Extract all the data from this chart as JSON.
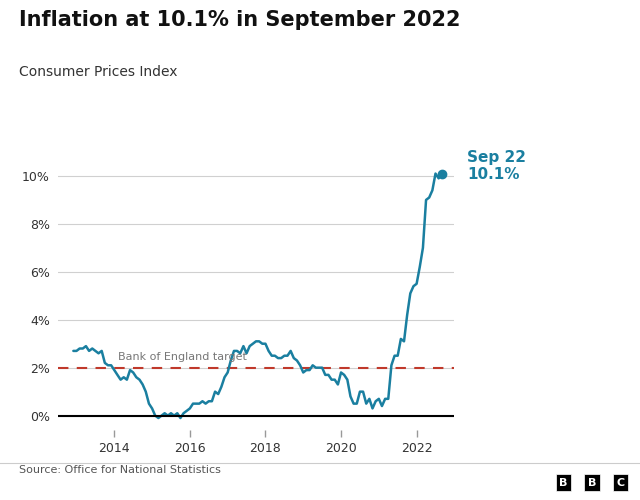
{
  "title": "Inflation at 10.1% in September 2022",
  "subtitle": "Consumer Prices Index",
  "source": "Source: Office for National Statistics",
  "line_color": "#1a7fa0",
  "target_line_color": "#c0392b",
  "target_value": 2.0,
  "target_label": "Bank of England target",
  "annotation_label": "Sep 22\n10.1%",
  "annotation_color": "#1a7fa0",
  "highlight_x": 2022.667,
  "highlight_y": 10.1,
  "background_color": "#ffffff",
  "xlim": [
    2012.5,
    2023.0
  ],
  "ylim": [
    -0.6,
    11.5
  ],
  "yticks": [
    0,
    2,
    4,
    6,
    8,
    10
  ],
  "xticks": [
    2014,
    2016,
    2018,
    2020,
    2022
  ],
  "data": [
    [
      2012.917,
      2.7
    ],
    [
      2013.0,
      2.7
    ],
    [
      2013.083,
      2.8
    ],
    [
      2013.167,
      2.8
    ],
    [
      2013.25,
      2.9
    ],
    [
      2013.333,
      2.7
    ],
    [
      2013.417,
      2.8
    ],
    [
      2013.5,
      2.7
    ],
    [
      2013.583,
      2.6
    ],
    [
      2013.667,
      2.7
    ],
    [
      2013.75,
      2.2
    ],
    [
      2013.833,
      2.1
    ],
    [
      2013.917,
      2.1
    ],
    [
      2014.0,
      1.9
    ],
    [
      2014.083,
      1.7
    ],
    [
      2014.167,
      1.5
    ],
    [
      2014.25,
      1.6
    ],
    [
      2014.333,
      1.5
    ],
    [
      2014.417,
      1.9
    ],
    [
      2014.5,
      1.8
    ],
    [
      2014.583,
      1.6
    ],
    [
      2014.667,
      1.5
    ],
    [
      2014.75,
      1.3
    ],
    [
      2014.833,
      1.0
    ],
    [
      2014.917,
      0.5
    ],
    [
      2015.0,
      0.3
    ],
    [
      2015.083,
      0.0
    ],
    [
      2015.167,
      -0.1
    ],
    [
      2015.25,
      0.0
    ],
    [
      2015.333,
      0.1
    ],
    [
      2015.417,
      0.0
    ],
    [
      2015.5,
      0.1
    ],
    [
      2015.583,
      0.0
    ],
    [
      2015.667,
      0.1
    ],
    [
      2015.75,
      -0.1
    ],
    [
      2015.833,
      0.1
    ],
    [
      2015.917,
      0.2
    ],
    [
      2016.0,
      0.3
    ],
    [
      2016.083,
      0.5
    ],
    [
      2016.167,
      0.5
    ],
    [
      2016.25,
      0.5
    ],
    [
      2016.333,
      0.6
    ],
    [
      2016.417,
      0.5
    ],
    [
      2016.5,
      0.6
    ],
    [
      2016.583,
      0.6
    ],
    [
      2016.667,
      1.0
    ],
    [
      2016.75,
      0.9
    ],
    [
      2016.833,
      1.2
    ],
    [
      2016.917,
      1.6
    ],
    [
      2017.0,
      1.8
    ],
    [
      2017.083,
      2.3
    ],
    [
      2017.167,
      2.7
    ],
    [
      2017.25,
      2.7
    ],
    [
      2017.333,
      2.6
    ],
    [
      2017.417,
      2.9
    ],
    [
      2017.5,
      2.6
    ],
    [
      2017.583,
      2.9
    ],
    [
      2017.667,
      3.0
    ],
    [
      2017.75,
      3.1
    ],
    [
      2017.833,
      3.1
    ],
    [
      2017.917,
      3.0
    ],
    [
      2018.0,
      3.0
    ],
    [
      2018.083,
      2.7
    ],
    [
      2018.167,
      2.5
    ],
    [
      2018.25,
      2.5
    ],
    [
      2018.333,
      2.4
    ],
    [
      2018.417,
      2.4
    ],
    [
      2018.5,
      2.5
    ],
    [
      2018.583,
      2.5
    ],
    [
      2018.667,
      2.7
    ],
    [
      2018.75,
      2.4
    ],
    [
      2018.833,
      2.3
    ],
    [
      2018.917,
      2.1
    ],
    [
      2019.0,
      1.8
    ],
    [
      2019.083,
      1.9
    ],
    [
      2019.167,
      1.9
    ],
    [
      2019.25,
      2.1
    ],
    [
      2019.333,
      2.0
    ],
    [
      2019.417,
      2.0
    ],
    [
      2019.5,
      2.0
    ],
    [
      2019.583,
      1.7
    ],
    [
      2019.667,
      1.7
    ],
    [
      2019.75,
      1.5
    ],
    [
      2019.833,
      1.5
    ],
    [
      2019.917,
      1.3
    ],
    [
      2020.0,
      1.8
    ],
    [
      2020.083,
      1.7
    ],
    [
      2020.167,
      1.5
    ],
    [
      2020.25,
      0.8
    ],
    [
      2020.333,
      0.5
    ],
    [
      2020.417,
      0.5
    ],
    [
      2020.5,
      1.0
    ],
    [
      2020.583,
      1.0
    ],
    [
      2020.667,
      0.5
    ],
    [
      2020.75,
      0.7
    ],
    [
      2020.833,
      0.3
    ],
    [
      2020.917,
      0.6
    ],
    [
      2021.0,
      0.7
    ],
    [
      2021.083,
      0.4
    ],
    [
      2021.167,
      0.7
    ],
    [
      2021.25,
      0.7
    ],
    [
      2021.333,
      2.1
    ],
    [
      2021.417,
      2.5
    ],
    [
      2021.5,
      2.5
    ],
    [
      2021.583,
      3.2
    ],
    [
      2021.667,
      3.1
    ],
    [
      2021.75,
      4.2
    ],
    [
      2021.833,
      5.1
    ],
    [
      2021.917,
      5.4
    ],
    [
      2022.0,
      5.5
    ],
    [
      2022.083,
      6.2
    ],
    [
      2022.167,
      7.0
    ],
    [
      2022.25,
      9.0
    ],
    [
      2022.333,
      9.1
    ],
    [
      2022.417,
      9.4
    ],
    [
      2022.5,
      10.1
    ],
    [
      2022.583,
      9.9
    ],
    [
      2022.667,
      10.1
    ]
  ]
}
